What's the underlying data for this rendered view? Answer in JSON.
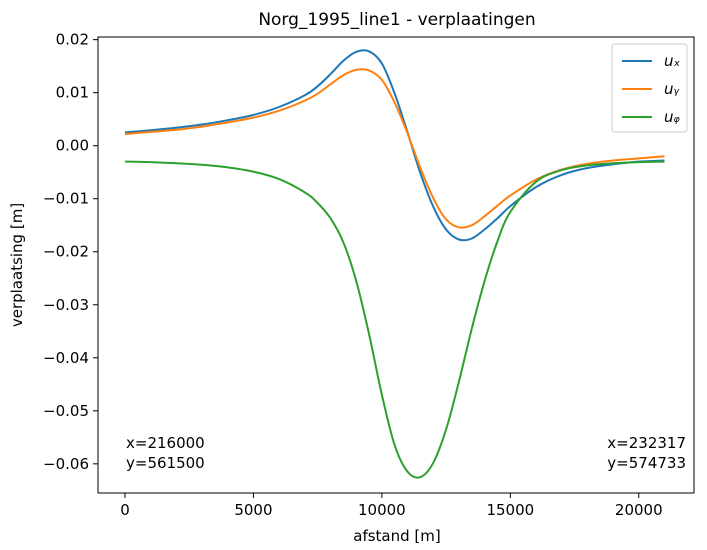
{
  "chart_data": {
    "type": "line",
    "title": "Norg_1995_line1 - verplaatingen",
    "xlabel": "afstand [m]",
    "ylabel": "verplaatsing [m]",
    "xlim": [
      -1050,
      22150
    ],
    "ylim": [
      -0.0655,
      0.0205
    ],
    "x_ticks": [
      0,
      5000,
      10000,
      15000,
      20000
    ],
    "x_tick_labels": [
      "0",
      "5000",
      "10000",
      "15000",
      "20000"
    ],
    "y_ticks": [
      0.02,
      0.01,
      0.0,
      -0.01,
      -0.02,
      -0.03,
      -0.04,
      -0.05,
      -0.06
    ],
    "y_tick_labels": [
      "0.02",
      "0.01",
      "0.00",
      "−0.01",
      "−0.02",
      "−0.03",
      "−0.04",
      "−0.05",
      "−0.06"
    ],
    "grid": false,
    "legend_position": "top-right",
    "x": [
      0,
      1000,
      2000,
      3000,
      4000,
      5000,
      6000,
      7000,
      7500,
      8000,
      8500,
      9000,
      9500,
      10000,
      10500,
      11000,
      11500,
      12000,
      12500,
      13000,
      13500,
      14000,
      14500,
      15000,
      16000,
      17000,
      18000,
      19000,
      20000,
      21000
    ],
    "series": [
      {
        "name": "uₓ",
        "color": "#1f77b4",
        "values": [
          0.0025,
          0.0029,
          0.0034,
          0.004,
          0.0048,
          0.0058,
          0.0073,
          0.0095,
          0.0112,
          0.0135,
          0.016,
          0.0177,
          0.0178,
          0.0155,
          0.0098,
          0.0025,
          -0.0052,
          -0.0115,
          -0.0158,
          -0.0177,
          -0.0175,
          -0.0158,
          -0.0137,
          -0.0114,
          -0.0078,
          -0.0055,
          -0.0042,
          -0.0035,
          -0.003,
          -0.0028
        ]
      },
      {
        "name": "uᵧ",
        "color": "#ff7f0e",
        "values": [
          0.0022,
          0.0026,
          0.003,
          0.0036,
          0.0044,
          0.0053,
          0.0066,
          0.0085,
          0.0098,
          0.0116,
          0.0133,
          0.0143,
          0.0142,
          0.0124,
          0.0081,
          0.0023,
          -0.0042,
          -0.0099,
          -0.0139,
          -0.0154,
          -0.015,
          -0.0133,
          -0.0113,
          -0.0094,
          -0.0064,
          -0.0045,
          -0.0034,
          -0.0028,
          -0.0024,
          -0.002
        ]
      },
      {
        "name": "uᵩ",
        "color": "#2ca02c",
        "values": [
          -0.003,
          -0.0031,
          -0.0033,
          -0.0036,
          -0.0041,
          -0.0049,
          -0.0063,
          -0.0088,
          -0.0108,
          -0.0137,
          -0.0182,
          -0.0255,
          -0.0355,
          -0.047,
          -0.0565,
          -0.0615,
          -0.0625,
          -0.0598,
          -0.0535,
          -0.0445,
          -0.0345,
          -0.0255,
          -0.018,
          -0.0125,
          -0.0068,
          -0.0046,
          -0.0037,
          -0.0033,
          -0.0031,
          -0.003
        ]
      }
    ],
    "annotations": [
      {
        "lines": [
          "x=216000",
          "y=561500"
        ],
        "align": "left"
      },
      {
        "lines": [
          "x=232317",
          "y=574733"
        ],
        "align": "right"
      }
    ]
  }
}
